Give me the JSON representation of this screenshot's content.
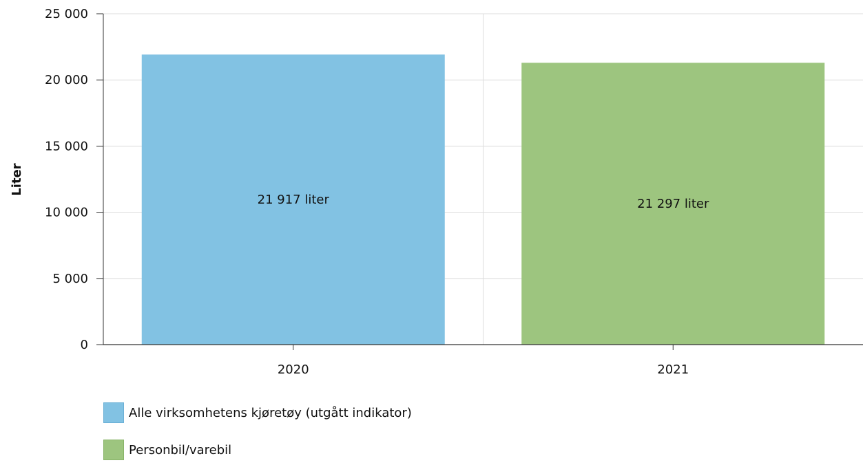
{
  "chart_data": {
    "type": "bar",
    "categories": [
      "2020",
      "2021"
    ],
    "series": [
      {
        "name": "Alle virksomhetens kjøretøy (utgått indikator)",
        "values": [
          21917,
          null
        ],
        "color": "#82c2e3"
      },
      {
        "name": "Personbil/varebil",
        "values": [
          null,
          21297
        ],
        "color": "#9dc57f"
      }
    ],
    "data_labels": [
      "21 917 liter",
      "21 297 liter"
    ],
    "ylabel": "Liter",
    "xlabel": "",
    "ylim": [
      0,
      25000
    ],
    "yticks": [
      0,
      5000,
      10000,
      15000,
      20000,
      25000
    ],
    "ytick_labels": [
      "0",
      "5 000",
      "10 000",
      "15 000",
      "20 000",
      "25 000"
    ],
    "grid": true,
    "legend_position": "bottom-left"
  }
}
